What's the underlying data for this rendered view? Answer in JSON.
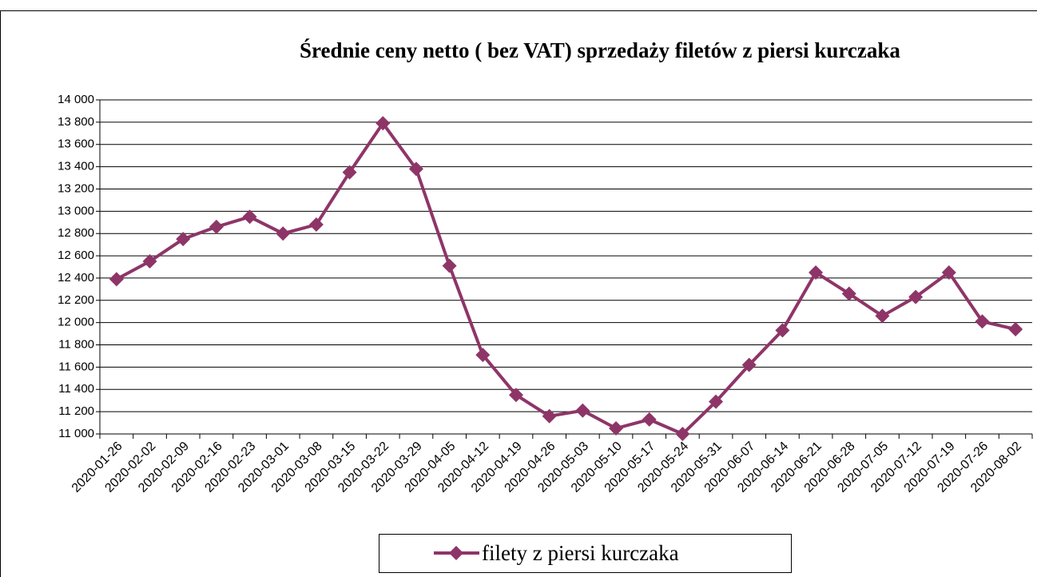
{
  "chart_data": {
    "type": "line",
    "title": "Średnie ceny netto ( bez VAT) sprzedaży filetów z piersi kurczaka",
    "categories": [
      "2020-01-26",
      "2020-02-02",
      "2020-02-09",
      "2020-02-16",
      "2020-02-23",
      "2020-03-01",
      "2020-03-08",
      "2020-03-15",
      "2020-03-22",
      "2020-03-29",
      "2020-04-05",
      "2020-04-12",
      "2020-04-19",
      "2020-04-26",
      "2020-05-03",
      "2020-05-10",
      "2020-05-17",
      "2020-05-24",
      "2020-05-31",
      "2020-06-07",
      "2020-06-14",
      "2020-06-21",
      "2020-06-28",
      "2020-07-05",
      "2020-07-12",
      "2020-07-19",
      "2020-07-26",
      "2020-08-02"
    ],
    "series": [
      {
        "name": "filety z piersi kurczaka",
        "color": "#8e3568",
        "values": [
          12390,
          12550,
          12750,
          12860,
          12950,
          12800,
          12880,
          13350,
          13790,
          13380,
          12510,
          11710,
          11350,
          11160,
          11210,
          11050,
          11130,
          11000,
          11290,
          11620,
          11930,
          12450,
          12260,
          12060,
          12230,
          12450,
          12010,
          11940
        ]
      }
    ],
    "ylim": [
      11000,
      14000
    ],
    "yticks": [
      {
        "value": 11000,
        "label": "11 000"
      },
      {
        "value": 11200,
        "label": "11 200"
      },
      {
        "value": 11400,
        "label": "11 400"
      },
      {
        "value": 11600,
        "label": "11 600"
      },
      {
        "value": 11800,
        "label": "11 800"
      },
      {
        "value": 12000,
        "label": "12 000"
      },
      {
        "value": 12200,
        "label": "12 200"
      },
      {
        "value": 12400,
        "label": "12 400"
      },
      {
        "value": 12600,
        "label": "12 600"
      },
      {
        "value": 12800,
        "label": "12 800"
      },
      {
        "value": 13000,
        "label": "13 000"
      },
      {
        "value": 13200,
        "label": "13 200"
      },
      {
        "value": 13400,
        "label": "13 400"
      },
      {
        "value": 13600,
        "label": "13 600"
      },
      {
        "value": 13800,
        "label": "13 800"
      },
      {
        "value": 14000,
        "label": "14 000"
      }
    ],
    "grid": true
  }
}
